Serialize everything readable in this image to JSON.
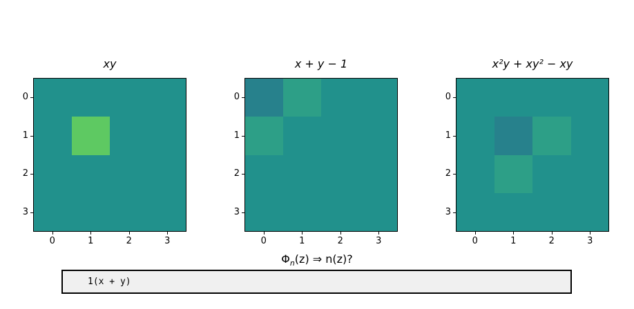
{
  "figure": {
    "background": "#ffffff",
    "prompt": {
      "phi": "Φ",
      "subscript": "n",
      "rest": "(z) ⇒ n(z)?"
    },
    "textbox": {
      "value": "1(x + y)",
      "background": "#f0f0f0",
      "border_color": "#000000"
    }
  },
  "chart_data": [
    {
      "type": "heatmap",
      "title": "xy",
      "x_ticks": [
        "0",
        "1",
        "2",
        "3"
      ],
      "y_ticks": [
        "0",
        "1",
        "2",
        "3"
      ],
      "matrix": [
        [
          0,
          0,
          0,
          0
        ],
        [
          0,
          1,
          0,
          0
        ],
        [
          0,
          0,
          0,
          0
        ],
        [
          0,
          0,
          0,
          0
        ]
      ],
      "value_colors": {
        "-1": "#27818c",
        "0": "#21918c",
        "1": "#5ec962"
      },
      "legend": "none",
      "grid": "off"
    },
    {
      "type": "heatmap",
      "title": "x + y − 1",
      "x_ticks": [
        "0",
        "1",
        "2",
        "3"
      ],
      "y_ticks": [
        "0",
        "1",
        "2",
        "3"
      ],
      "matrix": [
        [
          -1,
          1,
          0,
          0
        ],
        [
          1,
          0,
          0,
          0
        ],
        [
          0,
          0,
          0,
          0
        ],
        [
          0,
          0,
          0,
          0
        ]
      ],
      "value_colors": {
        "-1": "#27818c",
        "0": "#21918c",
        "1": "#2d9f87"
      },
      "legend": "none",
      "grid": "off"
    },
    {
      "type": "heatmap",
      "title": "x²y + xy² − xy",
      "x_ticks": [
        "0",
        "1",
        "2",
        "3"
      ],
      "y_ticks": [
        "0",
        "1",
        "2",
        "3"
      ],
      "matrix": [
        [
          0,
          0,
          0,
          0
        ],
        [
          0,
          -1,
          1,
          0
        ],
        [
          0,
          1,
          0,
          0
        ],
        [
          0,
          0,
          0,
          0
        ]
      ],
      "value_colors": {
        "-1": "#27818c",
        "0": "#21918c",
        "1": "#2d9f87"
      },
      "legend": "none",
      "grid": "off"
    }
  ]
}
